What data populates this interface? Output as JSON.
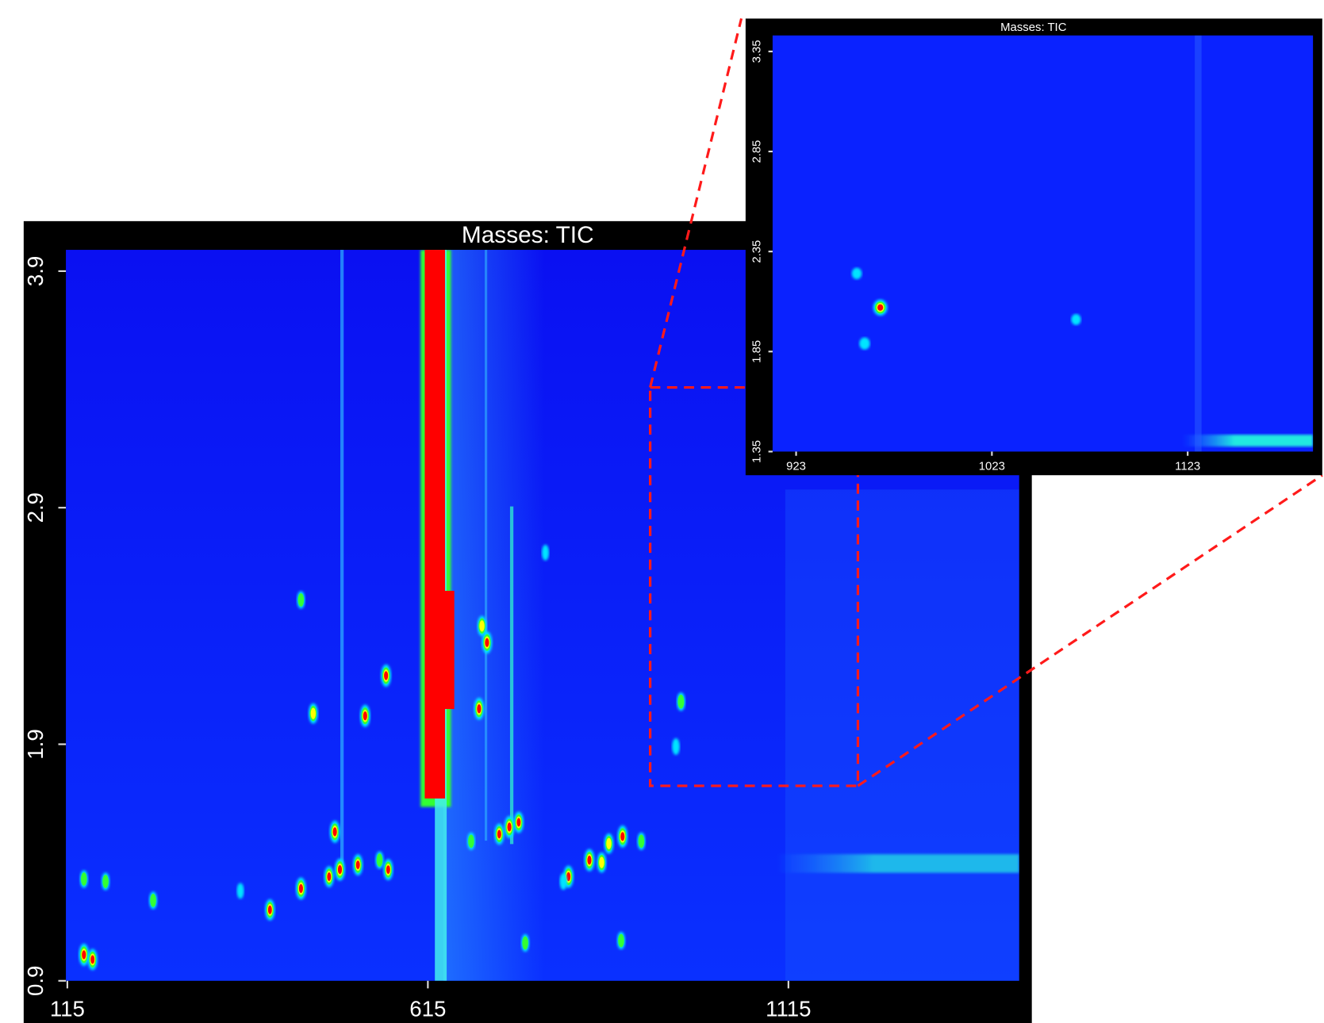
{
  "chart_data": [
    {
      "type": "heatmap",
      "title": "Masses:  TIC",
      "xlim": [
        113,
        1435
      ],
      "ylim": [
        0.9,
        3.99
      ],
      "xticks": [
        115,
        615,
        1115
      ],
      "yticks": [
        0.9,
        1.9,
        2.9,
        3.9
      ],
      "colormap": [
        "#00e5ff",
        "#33ff33",
        "#ffff00",
        "#ff0000"
      ],
      "peaks": {
        "x": [
          138,
          150,
          138,
          168,
          234,
          396,
          439,
          478,
          493,
          486,
          518,
          560,
          528,
          557,
          456,
          439,
          686,
          697,
          690,
          728,
          741,
          714,
          675,
          750,
          810,
          839,
          856,
          885,
          911,
          866,
          883,
          966,
          959,
          778,
          803,
          355,
          548
        ],
        "y": [
          1.01,
          0.99,
          1.33,
          1.32,
          1.24,
          1.2,
          1.29,
          1.34,
          1.37,
          1.53,
          1.39,
          1.37,
          2.02,
          2.19,
          2.03,
          2.51,
          2.05,
          2.33,
          2.4,
          1.55,
          1.57,
          1.52,
          1.49,
          1.06,
          1.34,
          1.41,
          1.4,
          1.51,
          1.49,
          1.48,
          1.07,
          2.08,
          1.89,
          2.71,
          1.32,
          1.28,
          1.41
        ],
        "intensity": [
          1,
          0.9,
          0.5,
          0.5,
          0.5,
          0.9,
          1,
          0.9,
          1,
          1,
          0.9,
          0.9,
          1,
          1,
          0.8,
          0.5,
          1,
          1,
          0.8,
          1,
          0.9,
          0.9,
          0.5,
          0.5,
          1,
          1,
          0.8,
          1,
          0.5,
          0.8,
          0.5,
          0.6,
          0.4,
          0.3,
          0.4,
          0.3,
          0.5
        ]
      }
    },
    {
      "type": "heatmap",
      "title": "Masses:  TIC",
      "xlim": [
        911,
        1187
      ],
      "ylim": [
        1.35,
        3.43
      ],
      "xticks": [
        923,
        1023,
        1123
      ],
      "yticks": [
        1.35,
        1.85,
        2.35,
        2.85,
        3.35
      ],
      "colormap": [
        "#00e5ff",
        "#33ff33",
        "#ffff00",
        "#ff0000"
      ],
      "peaks": {
        "x": [
          966,
          958,
          954,
          1066
        ],
        "y": [
          2.07,
          1.89,
          2.24,
          2.01
        ],
        "intensity": [
          1,
          0.4,
          0.3,
          0.25
        ]
      }
    }
  ]
}
